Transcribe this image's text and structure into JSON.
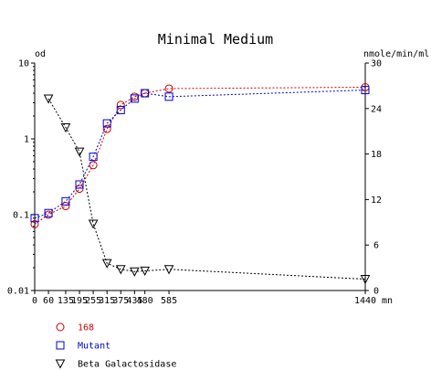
{
  "chart_data": {
    "type": "line",
    "title": "Minimal Medium",
    "ylabel_left": "od",
    "ylabel_right": "nmole/min/ml",
    "xlabel": "mn",
    "x_ticks": [
      0,
      60,
      135,
      195,
      255,
      315,
      375,
      435,
      480,
      585,
      1440
    ],
    "x_tick_labels": [
      "0",
      "60",
      "135",
      "195",
      "255",
      "315",
      "375",
      "435",
      "480",
      "585",
      "1440"
    ],
    "xlim": [
      0,
      1440
    ],
    "y_left_scale": "log",
    "y_left_lim": [
      0.01,
      10
    ],
    "y_left_ticks": [
      0.01,
      0.1,
      1,
      10
    ],
    "y_left_tick_labels": [
      "0.01",
      "0.1",
      "1",
      "10"
    ],
    "y_right_lim": [
      0,
      30
    ],
    "y_right_ticks": [
      0,
      6,
      12,
      18,
      24,
      30
    ],
    "y_right_tick_labels": [
      "0",
      "6",
      "12",
      "18",
      "24",
      "30"
    ],
    "legend_position": "bottom-left",
    "series": [
      {
        "name": "168",
        "axis": "left",
        "marker": "circle",
        "color": "#cc0000",
        "x": [
          0,
          60,
          135,
          195,
          255,
          315,
          375,
          435,
          480,
          585,
          1440
        ],
        "y": [
          0.075,
          0.1,
          0.13,
          0.22,
          0.45,
          1.35,
          2.8,
          3.6,
          4.0,
          4.6,
          4.8
        ]
      },
      {
        "name": "Mutant",
        "axis": "left",
        "marker": "square",
        "color": "#0000cc",
        "x": [
          0,
          60,
          135,
          195,
          255,
          315,
          375,
          435,
          480,
          585,
          1440
        ],
        "y": [
          0.09,
          0.105,
          0.15,
          0.25,
          0.58,
          1.6,
          2.4,
          3.4,
          4.0,
          3.6,
          4.4
        ]
      },
      {
        "name": "Beta Galactosidase",
        "axis": "right",
        "marker": "triangle-down",
        "color": "#000000",
        "x": [
          60,
          135,
          195,
          255,
          315,
          375,
          435,
          480,
          585,
          1440
        ],
        "y": [
          25.3,
          21.5,
          18.3,
          8.8,
          3.6,
          2.8,
          2.5,
          2.6,
          2.8,
          1.5
        ]
      }
    ]
  }
}
